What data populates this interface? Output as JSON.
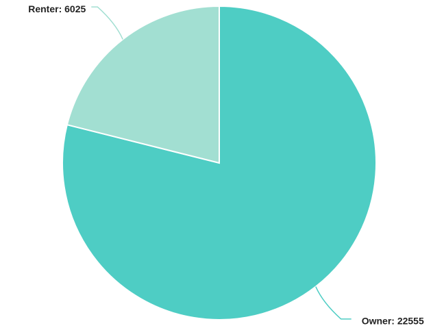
{
  "chart_data": {
    "type": "pie",
    "values": [
      22555,
      6025
    ],
    "value_labels": [
      "Owner: 22555",
      "Renter: 6025"
    ],
    "colors": [
      "#4ecdc4",
      "#a2dfd2"
    ]
  }
}
